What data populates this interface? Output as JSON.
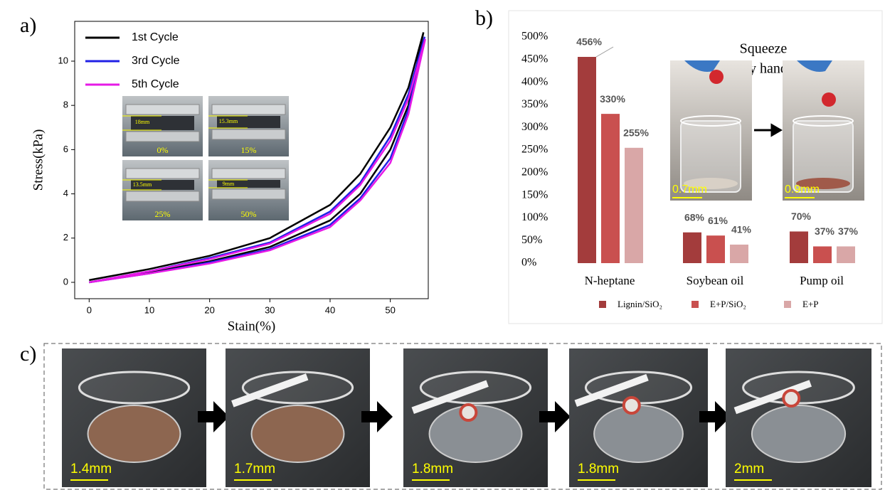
{
  "panel_labels": [
    "a)",
    "b)",
    "c)"
  ],
  "chart_data": [
    {
      "type": "line",
      "xlabel": "Stain(%)",
      "ylabel": "Stress(kPa)",
      "xlim": [
        -2.4,
        56.3
      ],
      "xticks": [
        0,
        10,
        20,
        30,
        40,
        50
      ],
      "ylim": [
        -0.74,
        11.8
      ],
      "yticks": [
        0,
        2,
        4,
        6,
        8,
        10
      ],
      "legend": "upper left",
      "series": [
        {
          "name": "1st Cycle",
          "color": "#000000",
          "x": [
            0,
            10,
            20,
            30,
            40,
            45,
            50,
            53,
            55.5,
            53,
            50,
            45,
            40,
            30,
            20,
            10,
            0
          ],
          "values": [
            0.1,
            0.6,
            1.2,
            2.0,
            3.5,
            4.9,
            7.0,
            8.8,
            11.3,
            8.0,
            6.0,
            4.0,
            2.8,
            1.6,
            0.95,
            0.45,
            0.0
          ]
        },
        {
          "name": "3rd Cycle",
          "color": "#2121e6",
          "x": [
            0,
            10,
            20,
            30,
            40,
            45,
            50,
            53,
            55.7,
            53,
            50,
            45,
            40,
            30,
            20,
            10,
            0
          ],
          "values": [
            0.0,
            0.5,
            1.1,
            1.8,
            3.2,
            4.5,
            6.6,
            8.5,
            11.1,
            7.8,
            5.6,
            3.8,
            2.6,
            1.5,
            0.9,
            0.4,
            0.0
          ]
        },
        {
          "name": "5th Cycle",
          "color": "#e619e6",
          "x": [
            0,
            10,
            20,
            30,
            40,
            45,
            50,
            53,
            55.8,
            53,
            50,
            45,
            40,
            30,
            20,
            10,
            0
          ],
          "values": [
            0.0,
            0.5,
            1.05,
            1.75,
            3.1,
            4.4,
            6.4,
            8.3,
            11.0,
            7.6,
            5.4,
            3.7,
            2.5,
            1.45,
            0.85,
            0.4,
            0.0
          ]
        }
      ]
    },
    {
      "type": "bar",
      "categories": [
        "N-heptane",
        "Soybean oil",
        "Pump oil"
      ],
      "ylim": [
        0,
        500
      ],
      "yticks": [
        {
          "value": 0,
          "label": "0%"
        },
        {
          "value": 50,
          "label": "50%"
        },
        {
          "value": 100,
          "label": "100%"
        },
        {
          "value": 150,
          "label": "150%"
        },
        {
          "value": 200,
          "label": "200%"
        },
        {
          "value": 250,
          "label": "250%"
        },
        {
          "value": 300,
          "label": "300%"
        },
        {
          "value": 350,
          "label": "350%"
        },
        {
          "value": 400,
          "label": "400%"
        },
        {
          "value": 450,
          "label": "450%"
        },
        {
          "value": 500,
          "label": "500%"
        }
      ],
      "legend": "bottom",
      "series": [
        {
          "name": "Lignin/SiO₂",
          "color": "#a33c3c",
          "values": [
            456,
            68,
            70
          ],
          "value_labels": [
            "456%",
            "68%",
            "70%"
          ]
        },
        {
          "name": "E+P/SiO₂",
          "color": "#c9504f",
          "values": [
            330,
            61,
            37
          ],
          "value_labels": [
            "330%",
            "61%",
            "37%"
          ]
        },
        {
          "name": "E+P",
          "color": "#d9a7a7",
          "values": [
            255,
            41,
            37
          ],
          "value_labels": [
            "255%",
            "41%",
            "37%"
          ]
        }
      ]
    }
  ],
  "inset_photos": [
    {
      "thickness": "18mm",
      "strain": "0%"
    },
    {
      "thickness": "15.3mm",
      "strain": "15%"
    },
    {
      "thickness": "13.5mm",
      "strain": "25%"
    },
    {
      "thickness": "9mm",
      "strain": "50%"
    }
  ],
  "squeeze_photos": {
    "caption": [
      "Squeeze",
      "by hand"
    ],
    "labels": [
      "0.7mm",
      "0.9mm"
    ]
  },
  "sequence_photos": [
    "1.4mm",
    "1.7mm",
    "1.8mm",
    "1.8mm",
    "2mm"
  ]
}
